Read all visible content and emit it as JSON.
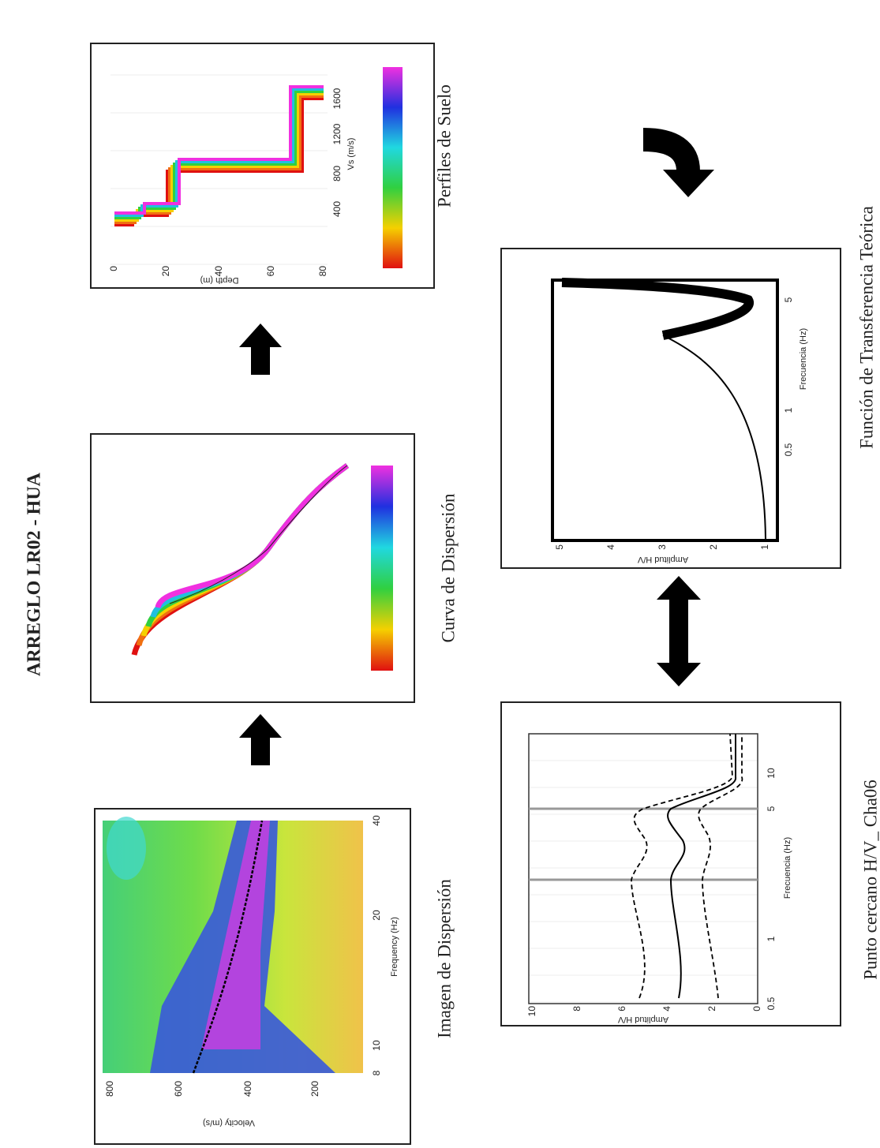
{
  "title": "ARREGLO LR02 - HUA",
  "panels": [
    {
      "caption": "Imagen de Dispersión",
      "y_label": "Velocity (m/s)",
      "y_ticks": [
        "800",
        "600",
        "400",
        "200"
      ],
      "x_label": "Frequency (Hz)",
      "x_ticks": [
        "8",
        "10",
        "20",
        "40"
      ]
    },
    {
      "caption": "Curva de Dispersión"
    },
    {
      "caption": "Perfiles de Suelo",
      "y_label": "Depth (m)",
      "y_ticks": [
        "0",
        "20",
        "40",
        "60",
        "80"
      ],
      "x_label": "Vs (m/s)",
      "x_ticks": [
        "400",
        "800",
        "1200",
        "1600"
      ]
    },
    {
      "caption": "Punto cercano H/V_ Cha06",
      "y_label": "Amplitud H/V",
      "y_ticks": [
        "10",
        "8",
        "6",
        "4",
        "2",
        "0"
      ],
      "x_label": "Frecuencia (Hz)",
      "x_ticks": [
        "0.5",
        "1",
        "5",
        "10"
      ]
    },
    {
      "caption": "Función de Transferencia Teórica",
      "y_label": "Amplitud H/V",
      "y_ticks": [
        "5",
        "4",
        "3",
        "2",
        "1"
      ],
      "x_label": "Frecuencia (Hz)",
      "x_ticks": [
        "0.5",
        "1",
        "5"
      ]
    }
  ]
}
